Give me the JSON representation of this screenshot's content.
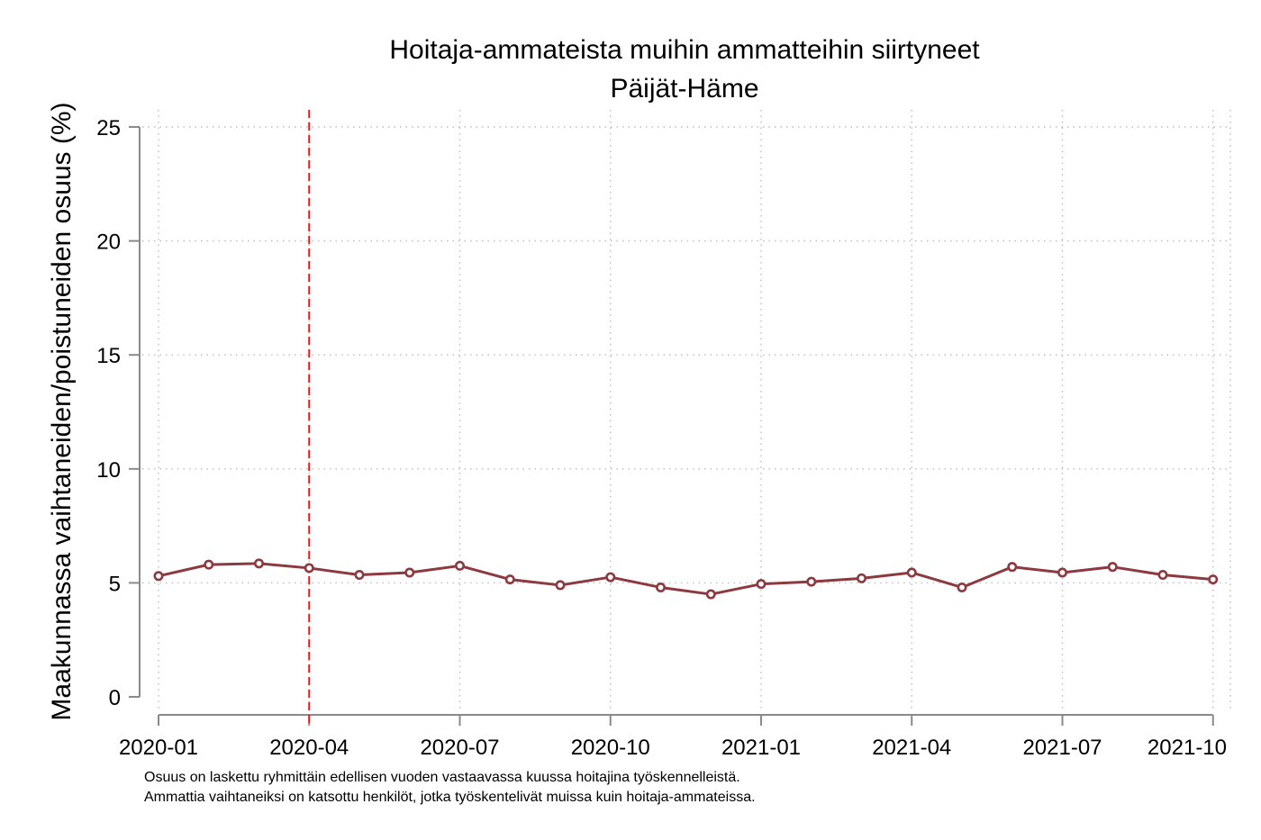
{
  "chart_data": {
    "type": "line",
    "title": "Hoitaja-ammateista muihin ammatteihin siirtyneet",
    "subtitle": "Päijät-Häme",
    "xlabel": "",
    "ylabel": "Maakunnassa vaihtaneiden/poistuneiden osuus (%)",
    "ylim": [
      0,
      25
    ],
    "yticks": [
      0,
      5,
      10,
      15,
      20,
      25
    ],
    "xticks": [
      "2020-01",
      "2020-04",
      "2020-07",
      "2020-10",
      "2021-01",
      "2021-04",
      "2021-07",
      "2021-10"
    ],
    "x": [
      "2020-01",
      "2020-02",
      "2020-03",
      "2020-04",
      "2020-05",
      "2020-06",
      "2020-07",
      "2020-08",
      "2020-09",
      "2020-10",
      "2020-11",
      "2020-12",
      "2021-01",
      "2021-02",
      "2021-03",
      "2021-04",
      "2021-05",
      "2021-06",
      "2021-07",
      "2021-08",
      "2021-09",
      "2021-10"
    ],
    "series": [
      {
        "values": [
          5.3,
          5.8,
          5.85,
          5.65,
          5.35,
          5.45,
          5.75,
          5.15,
          4.9,
          5.25,
          4.8,
          4.5,
          4.95,
          5.05,
          5.2,
          5.45,
          4.8,
          5.7,
          5.45,
          5.7,
          5.35,
          5.15
        ],
        "color": "#8c3a3f"
      }
    ],
    "reference_line": {
      "x": "2020-04",
      "color": "#e31a1c",
      "style": "dashed"
    },
    "grid": true,
    "notes": [
      "Osuus on laskettu ryhmittäin edellisen vuoden vastaavassa kuussa hoitajina työskennelleistä.",
      "Ammattia vaihtaneiksi on katsottu henkilöt, jotka työskentelivät muissa kuin hoitaja-ammateissa."
    ]
  }
}
